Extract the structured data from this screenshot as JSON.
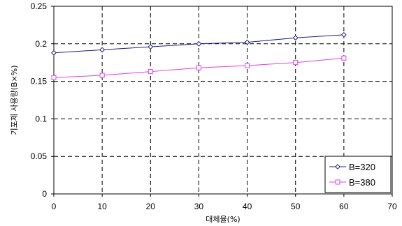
{
  "chart_data": {
    "type": "line",
    "title": "",
    "xlabel": "대체율(%)",
    "ylabel": "기포제 사용량(B×%)",
    "xlim": [
      0,
      70
    ],
    "ylim": [
      0,
      0.25
    ],
    "x_ticks": [
      0,
      10,
      20,
      30,
      40,
      50,
      60,
      70
    ],
    "x_tick_labels": [
      "0",
      "10",
      "20",
      "30",
      "40",
      "50",
      "60",
      "70"
    ],
    "y_ticks": [
      0,
      0.05,
      0.1,
      0.15,
      0.2,
      0.25
    ],
    "y_tick_labels": [
      "0",
      "0.05",
      "0.1",
      "0.15",
      "0.2",
      "0.25"
    ],
    "grid": true,
    "grid_style": "dashed",
    "legend_position": "bottom-right",
    "x": [
      0,
      10,
      20,
      30,
      40,
      50,
      60
    ],
    "series": [
      {
        "name": "B=320",
        "values": [
          0.188,
          0.192,
          0.196,
          0.2,
          0.202,
          0.208,
          0.212
        ],
        "color": "#1f1f7a",
        "marker": "diamond"
      },
      {
        "name": "B=380",
        "values": [
          0.155,
          0.158,
          0.163,
          0.168,
          0.171,
          0.175,
          0.181
        ],
        "color": "#e040e0",
        "marker": "square"
      }
    ]
  }
}
